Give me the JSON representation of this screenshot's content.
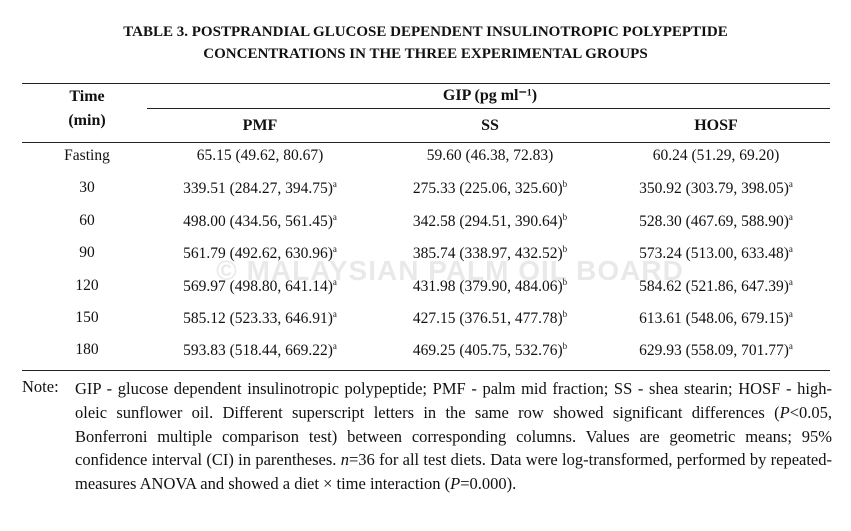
{
  "title": {
    "lines": [
      "TABLE 3. POSTPRANDIAL GLUCOSE DEPENDENT INSULINOTROPIC POLYPEPTIDE",
      "CONCENTRATIONS IN THE THREE EXPERIMENTAL GROUPS"
    ]
  },
  "header": {
    "time": [
      "Time",
      "(min)"
    ],
    "group": "GIP (pg ml⁻¹)",
    "columns": [
      "PMF",
      "SS",
      "HOSF"
    ]
  },
  "table": {
    "rows": [
      [
        "Fasting",
        {
          "text": "65.15 (49.62, 80.67)"
        },
        {
          "text": "59.60 (46.38, 72.83)"
        },
        {
          "text": "60.24 (51.29, 69.20)"
        }
      ],
      [
        "30",
        {
          "text": "339.51 (284.27, 394.75)",
          "sup": "a"
        },
        {
          "text": "275.33 (225.06, 325.60)",
          "sup": "b"
        },
        {
          "text": "350.92 (303.79, 398.05)",
          "sup": "a"
        }
      ],
      [
        "60",
        {
          "text": "498.00 (434.56, 561.45)",
          "sup": "a"
        },
        {
          "text": "342.58 (294.51, 390.64)",
          "sup": "b"
        },
        {
          "text": "528.30 (467.69, 588.90)",
          "sup": "a"
        }
      ],
      [
        "90",
        {
          "text": "561.79 (492.62, 630.96)",
          "sup": "a"
        },
        {
          "text": "385.74 (338.97, 432.52)",
          "sup": "b"
        },
        {
          "text": "573.24 (513.00, 633.48)",
          "sup": "a"
        }
      ],
      [
        "120",
        {
          "text": "569.97 (498.80, 641.14)",
          "sup": "a"
        },
        {
          "text": "431.98 (379.90, 484.06)",
          "sup": "b"
        },
        {
          "text": "584.62 (521.86, 647.39)",
          "sup": "a"
        }
      ],
      [
        "150",
        {
          "text": "585.12 (523.33, 646.91)",
          "sup": "a"
        },
        {
          "text": "427.15 (376.51, 477.78)",
          "sup": "b"
        },
        {
          "text": "613.61 (548.06, 679.15)",
          "sup": "a"
        }
      ],
      [
        "180",
        {
          "text": "593.83 (518.44, 669.22)",
          "sup": "a"
        },
        {
          "text": "469.25 (405.75, 532.76)",
          "sup": "b"
        },
        {
          "text": "629.93 (558.09, 701.77)",
          "sup": "a"
        }
      ]
    ]
  },
  "watermark": "© MALAYSIAN PALM OIL BOARD",
  "note": {
    "label": "Note:",
    "parts": [
      {
        "text": "GIP - glucose dependent insulinotropic polypeptide; PMF - palm mid fraction; SS - shea stearin; HOSF - high-oleic sunflower oil. Different superscript letters in the same row showed significant differences ("
      },
      {
        "text": "P",
        "italic": true
      },
      {
        "text": "<0.05, Bonferroni multiple comparison test) between corresponding columns. Values are geometric means; 95% confidence interval (CI) in parentheses. "
      },
      {
        "text": "n",
        "italic": true
      },
      {
        "text": "=36 for all test diets. Data were log-transformed, performed by repeated-measures ANOVA and showed a diet × time interaction ("
      },
      {
        "text": "P",
        "italic": true
      },
      {
        "text": "=0.000)."
      }
    ]
  }
}
